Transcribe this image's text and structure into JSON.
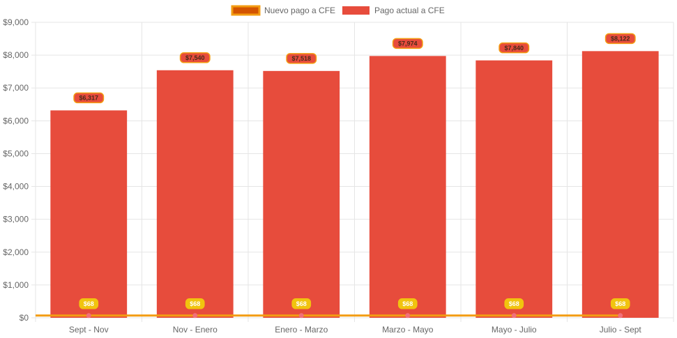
{
  "chart_data": {
    "type": "bar",
    "categories": [
      "Sept - Nov",
      "Nov - Enero",
      "Enero - Marzo",
      "Marzo - Mayo",
      "Mayo - Julio",
      "Julio - Sept"
    ],
    "series": [
      {
        "name": "Pago actual a CFE",
        "type": "bar",
        "values": [
          6317,
          7540,
          7518,
          7974,
          7840,
          8122
        ],
        "labels": [
          "$6,317",
          "$7,540",
          "$7,518",
          "$7,974",
          "$7,840",
          "$8,122"
        ],
        "color": "#E74C3C"
      },
      {
        "name": "Nuevo pago a CFE",
        "type": "line",
        "values": [
          68,
          68,
          68,
          68,
          68,
          68
        ],
        "labels": [
          "$68",
          "$68",
          "$68",
          "$68",
          "$68",
          "$68"
        ],
        "color": "#F39C12"
      }
    ],
    "yticks": [
      "$0",
      "$1,000",
      "$2,000",
      "$3,000",
      "$4,000",
      "$5,000",
      "$6,000",
      "$7,000",
      "$8,000",
      "$9,000"
    ],
    "ylim": [
      0,
      9000
    ],
    "grid": true,
    "legend_position": "top"
  },
  "colors": {
    "bar": "#E74C3C",
    "bar_label_bg": "#E74C3C",
    "bar_label_border": "#F39C12",
    "bar_label_text": "#4A2A1A",
    "line": "#F39C12",
    "line_point": "#F1707A",
    "line_label_bg": "#F1C40F",
    "line_label_text": "#ffffff",
    "legend_line_fill": "#D35400",
    "grid": "#E5E5E5"
  }
}
